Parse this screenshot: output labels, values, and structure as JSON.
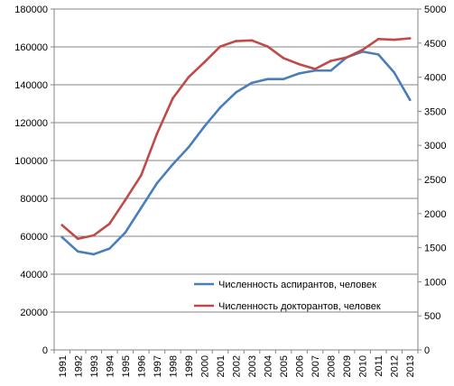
{
  "chart_data": {
    "type": "line",
    "title": "",
    "xlabel": "",
    "ylabel": "",
    "x": [
      "1991",
      "1992",
      "1993",
      "1994",
      "1995",
      "1996",
      "1997",
      "1998",
      "1999",
      "2000",
      "2001",
      "2002",
      "2003",
      "2004",
      "2005",
      "2006",
      "2007",
      "2008",
      "2009",
      "2010",
      "2011",
      "2012",
      "2013"
    ],
    "ylim_left": [
      0,
      180000
    ],
    "yticks_left": [
      "0",
      "20000",
      "40000",
      "60000",
      "80000",
      "100000",
      "120000",
      "140000",
      "160000",
      "180000"
    ],
    "ylim_right": [
      0,
      5000
    ],
    "yticks_right": [
      "0",
      "500",
      "1000",
      "1500",
      "2000",
      "2500",
      "3000",
      "3500",
      "4000",
      "4500",
      "5000"
    ],
    "grid": true,
    "legend_position": "lower-right",
    "series": [
      {
        "name": "Численность аспирантов, человек",
        "axis": "left",
        "color": "#4a7ebb",
        "values": [
          59500,
          52000,
          50500,
          53500,
          62000,
          75000,
          88000,
          98000,
          107000,
          118000,
          128000,
          136000,
          141000,
          143000,
          143000,
          146000,
          147500,
          147500,
          154500,
          157500,
          156000,
          146500,
          132000
        ]
      },
      {
        "name": "Численность докторантов, человек",
        "axis": "right",
        "color": "#be4b48",
        "values": [
          1830,
          1630,
          1680,
          1850,
          2200,
          2560,
          3170,
          3690,
          4000,
          4220,
          4450,
          4530,
          4540,
          4450,
          4280,
          4190,
          4120,
          4240,
          4290,
          4400,
          4560,
          4550,
          4570
        ]
      }
    ]
  }
}
